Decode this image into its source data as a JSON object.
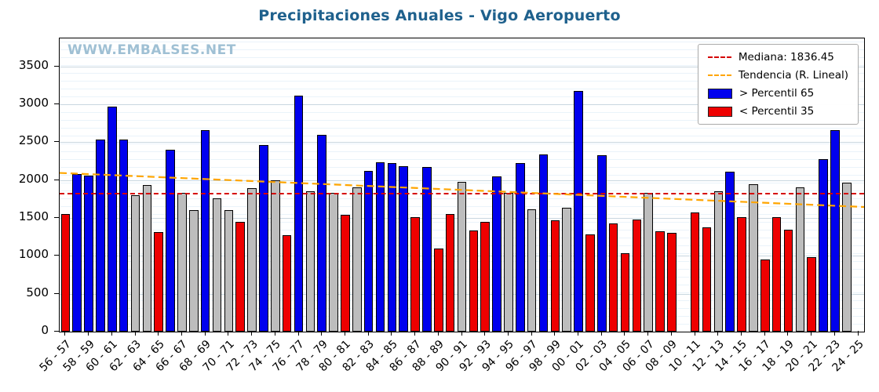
{
  "title": "Precipitaciones Anuales - Vigo Aeropuerto",
  "watermark": "WWW.EMBALSES.NET",
  "legend": {
    "median_label": "Mediana: 1836.45",
    "trend_label": "Tendencia (R. Lineal)",
    "above_label": "> Percentil 65",
    "below_label": "< Percentil 35"
  },
  "colors": {
    "above": "#0000ee",
    "below": "#ee0000",
    "mid": "#bdbdbd",
    "median_line": "#d40000",
    "trend_line": "#ffa500",
    "title": "#1f618d",
    "watermark": "#9fc0d4"
  },
  "chart_data": {
    "type": "bar",
    "title": "Precipitaciones Anuales - Vigo Aeropuerto",
    "xlabel": "",
    "ylabel": "",
    "ylim": [
      0,
      3870
    ],
    "yticks": [
      0,
      500,
      1000,
      1500,
      2000,
      2500,
      3000,
      3500
    ],
    "grid": true,
    "legend_position": "upper right",
    "median": 1836.45,
    "trend": {
      "start": 2095,
      "end": 1645
    },
    "categories": [
      "56 - 57",
      "57 - 58",
      "58 - 59",
      "59 - 60",
      "60 - 61",
      "61 - 62",
      "62 - 63",
      "63 - 64",
      "64 - 65",
      "65 - 66",
      "66 - 67",
      "67 - 68",
      "68 - 69",
      "69 - 70",
      "70 - 71",
      "71 - 72",
      "72 - 73",
      "73 - 74",
      "74 - 75",
      "75 - 76",
      "76 - 77",
      "77 - 78",
      "78 - 79",
      "79 - 80",
      "80 - 81",
      "81 - 82",
      "82 - 83",
      "83 - 84",
      "84 - 85",
      "85 - 86",
      "86 - 87",
      "87 - 88",
      "88 - 89",
      "89 - 90",
      "90 - 91",
      "91 - 92",
      "92 - 93",
      "93 - 94",
      "94 - 95",
      "95 - 96",
      "96 - 97",
      "97 - 98",
      "98 - 99",
      "99 - 00",
      "00 - 01",
      "01 - 02",
      "02 - 03",
      "03 - 04",
      "04 - 05",
      "05 - 06",
      "06 - 07",
      "07 - 08",
      "08 - 09",
      "09 - 10",
      "10 - 11",
      "11 - 12",
      "12 - 13",
      "13 - 14",
      "14 - 15",
      "15 - 16",
      "16 - 17",
      "17 - 18",
      "18 - 19",
      "19 - 20",
      "20 - 21",
      "21 - 22",
      "22 - 23",
      "23 - 24",
      "24 - 25"
    ],
    "values": [
      1550,
      2080,
      2060,
      2530,
      2970,
      2540,
      1800,
      1930,
      1310,
      2400,
      1830,
      1600,
      2660,
      1760,
      1600,
      1450,
      1890,
      2460,
      2000,
      1270,
      3110,
      1850,
      2600,
      1830,
      1540,
      1900,
      2120,
      2230,
      2220,
      2180,
      1510,
      2170,
      1100,
      1550,
      1980,
      1330,
      1450,
      2050,
      1830,
      2220,
      1610,
      2340,
      1470,
      1630,
      3180,
      1280,
      2330,
      1430,
      1030,
      1480,
      1830,
      1320,
      1300,
      null,
      1570,
      1380,
      1850,
      2110,
      1510,
      1950,
      950,
      1510,
      1350,
      1900,
      980,
      2280,
      2660,
      1970,
      null
    ],
    "percentile_class": [
      "below",
      "above",
      "above",
      "above",
      "above",
      "above",
      "mid",
      "mid",
      "below",
      "above",
      "mid",
      "mid",
      "above",
      "mid",
      "mid",
      "below",
      "mid",
      "above",
      "mid",
      "below",
      "above",
      "mid",
      "above",
      "mid",
      "below",
      "mid",
      "above",
      "above",
      "above",
      "above",
      "below",
      "above",
      "below",
      "below",
      "mid",
      "below",
      "below",
      "above",
      "mid",
      "above",
      "mid",
      "above",
      "below",
      "mid",
      "above",
      "below",
      "above",
      "below",
      "below",
      "below",
      "mid",
      "below",
      "below",
      null,
      "below",
      "below",
      "mid",
      "above",
      "below",
      "mid",
      "below",
      "below",
      "below",
      "mid",
      "below",
      "above",
      "above",
      "mid",
      null
    ]
  }
}
